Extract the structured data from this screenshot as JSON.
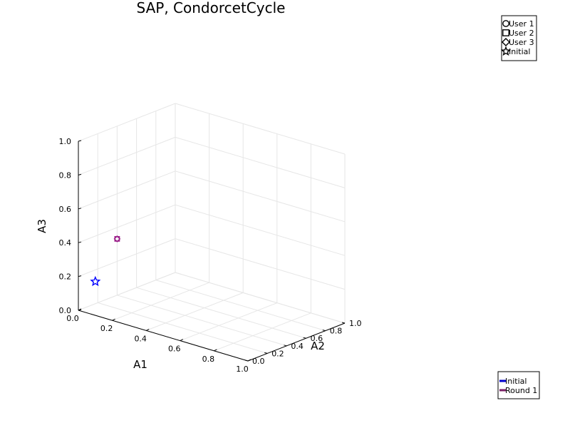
{
  "chart_data": {
    "type": "scatter",
    "projection": "3d",
    "title": "SAP, CondorcetCycle",
    "xlabel": "A1",
    "ylabel": "A2",
    "zlabel": "A3",
    "xlim": [
      0.0,
      1.0
    ],
    "ylim": [
      0.0,
      1.0
    ],
    "zlim": [
      0.0,
      1.0
    ],
    "xticks": [
      "0.0",
      "0.2",
      "0.4",
      "0.6",
      "0.8",
      "1.0"
    ],
    "yticks": [
      "0.0",
      "0.2",
      "0.4",
      "0.6",
      "0.8",
      "1.0"
    ],
    "zticks": [
      "0.0",
      "0.2",
      "0.4",
      "0.6",
      "0.8",
      "1.0"
    ],
    "grid": true,
    "marker_legend": {
      "placement": "top-right",
      "entries": [
        {
          "label": "User 1",
          "marker": "circle"
        },
        {
          "label": "User 2",
          "marker": "square"
        },
        {
          "label": "User 3",
          "marker": "diamond"
        },
        {
          "label": "Initial",
          "marker": "star"
        }
      ]
    },
    "line_legend": {
      "placement": "bottom-right",
      "entries": [
        {
          "label": "Initial",
          "color": "#0000cc"
        },
        {
          "label": "Round 1",
          "color": "#7a1f66"
        }
      ]
    },
    "points": [
      {
        "series": "Initial",
        "marker": "star",
        "x": 0.1,
        "y": 0.0,
        "z": 0.2,
        "color": "#0000ff"
      },
      {
        "series": "Round 1",
        "marker": "circle",
        "x": 0.0,
        "y": 0.4,
        "z": 0.333,
        "color": "#9b1f8a"
      },
      {
        "series": "Round 1",
        "marker": "square",
        "x": 0.0,
        "y": 0.4,
        "z": 0.333,
        "color": "#9b1f8a"
      },
      {
        "series": "Round 1",
        "marker": "diamond",
        "x": 0.0,
        "y": 0.4,
        "z": 0.333,
        "color": "#9b1f8a"
      }
    ]
  }
}
